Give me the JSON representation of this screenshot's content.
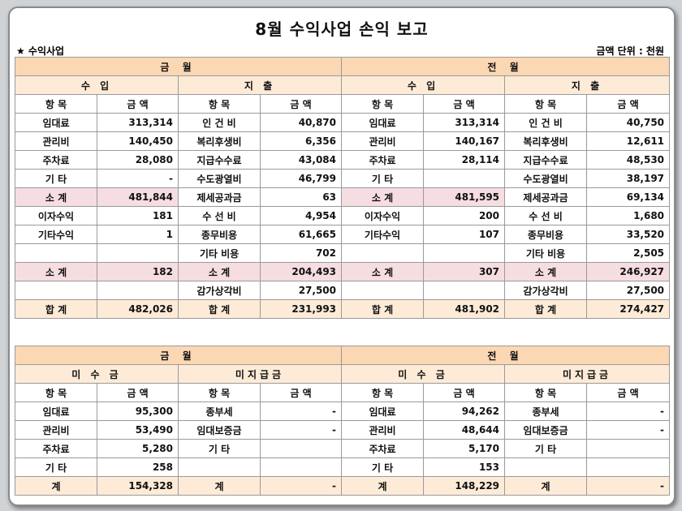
{
  "title": "8월  수익사업 손익 보고",
  "section_label": "★ 수익사업",
  "unit_label": "금액 단위 : 천원",
  "top": {
    "current_header": "금      월",
    "previous_header": "전      월",
    "income_header": "수   입",
    "expense_header": "지   출",
    "col_item": "항 목",
    "col_amount": "금 액",
    "current": {
      "income": [
        {
          "item": "임대료",
          "amount": "313,314"
        },
        {
          "item": "관리비",
          "amount": "140,450"
        },
        {
          "item": "주차료",
          "amount": "28,080"
        },
        {
          "item": "기 타",
          "amount": "-"
        },
        {
          "item": "소 계",
          "amount": "481,844"
        },
        {
          "item": "이자수익",
          "amount": "181"
        },
        {
          "item": "기타수익",
          "amount": "1"
        },
        {
          "item": "",
          "amount": ""
        },
        {
          "item": "소 계",
          "amount": "182"
        },
        {
          "item": "",
          "amount": ""
        },
        {
          "item": "합 계",
          "amount": "482,026"
        }
      ],
      "expense": [
        {
          "item": "인 건 비",
          "amount": "40,870"
        },
        {
          "item": "복리후생비",
          "amount": "6,356"
        },
        {
          "item": "지급수수료",
          "amount": "43,084"
        },
        {
          "item": "수도광열비",
          "amount": "46,799"
        },
        {
          "item": "제세공과금",
          "amount": "63"
        },
        {
          "item": "수 선 비",
          "amount": "4,954"
        },
        {
          "item": "종무비용",
          "amount": "61,665"
        },
        {
          "item": "기타 비용",
          "amount": "702"
        },
        {
          "item": "소 계",
          "amount": "204,493"
        },
        {
          "item": "감가상각비",
          "amount": "27,500"
        },
        {
          "item": "합 계",
          "amount": "231,993"
        }
      ]
    },
    "previous": {
      "income": [
        {
          "item": "임대료",
          "amount": "313,314"
        },
        {
          "item": "관리비",
          "amount": "140,167"
        },
        {
          "item": "주차료",
          "amount": "28,114"
        },
        {
          "item": "기 타",
          "amount": ""
        },
        {
          "item": "소 계",
          "amount": "481,595"
        },
        {
          "item": "이자수익",
          "amount": "200"
        },
        {
          "item": "기타수익",
          "amount": "107"
        },
        {
          "item": "",
          "amount": ""
        },
        {
          "item": "소 계",
          "amount": "307"
        },
        {
          "item": "",
          "amount": ""
        },
        {
          "item": "합 계",
          "amount": "481,902"
        }
      ],
      "expense": [
        {
          "item": "인 건 비",
          "amount": "40,750"
        },
        {
          "item": "복리후생비",
          "amount": "12,611"
        },
        {
          "item": "지급수수료",
          "amount": "48,530"
        },
        {
          "item": "수도광열비",
          "amount": "38,197"
        },
        {
          "item": "제세공과금",
          "amount": "69,134"
        },
        {
          "item": "수 선 비",
          "amount": "1,680"
        },
        {
          "item": "종무비용",
          "amount": "33,520"
        },
        {
          "item": "기타 비용",
          "amount": "2,505"
        },
        {
          "item": "소 계",
          "amount": "246,927"
        },
        {
          "item": "감가상각비",
          "amount": "27,500"
        },
        {
          "item": "합 계",
          "amount": "274,427"
        }
      ]
    }
  },
  "bottom": {
    "current_header": "금      월",
    "previous_header": "전      월",
    "receivable_header": "미 수 금",
    "payable_header": "미지급금",
    "col_item": "항 목",
    "col_amount": "금 액",
    "current": {
      "receivable": [
        {
          "item": "임대료",
          "amount": "95,300"
        },
        {
          "item": "관리비",
          "amount": "53,490"
        },
        {
          "item": "주차료",
          "amount": "5,280"
        },
        {
          "item": "기 타",
          "amount": "258"
        },
        {
          "item": "계",
          "amount": "154,328"
        }
      ],
      "payable": [
        {
          "item": "종부세",
          "amount": "-"
        },
        {
          "item": "임대보증금",
          "amount": "-"
        },
        {
          "item": "기 타",
          "amount": ""
        },
        {
          "item": "",
          "amount": ""
        },
        {
          "item": "계",
          "amount": "-"
        }
      ]
    },
    "previous": {
      "receivable": [
        {
          "item": "임대료",
          "amount": "94,262"
        },
        {
          "item": "관리비",
          "amount": "48,644"
        },
        {
          "item": "주차료",
          "amount": "5,170"
        },
        {
          "item": "기 타",
          "amount": "153"
        },
        {
          "item": "계",
          "amount": "148,229"
        }
      ],
      "payable": [
        {
          "item": "종부세",
          "amount": "-"
        },
        {
          "item": "임대보증금",
          "amount": "-"
        },
        {
          "item": "기 타",
          "amount": ""
        },
        {
          "item": "",
          "amount": ""
        },
        {
          "item": "계",
          "amount": "-"
        }
      ]
    }
  },
  "colors": {
    "header_bg": "#fbd7b3",
    "subheader_bg": "#fdebd7",
    "subtotal_bg": "#f6dde2",
    "border": "#9a9a9a"
  }
}
